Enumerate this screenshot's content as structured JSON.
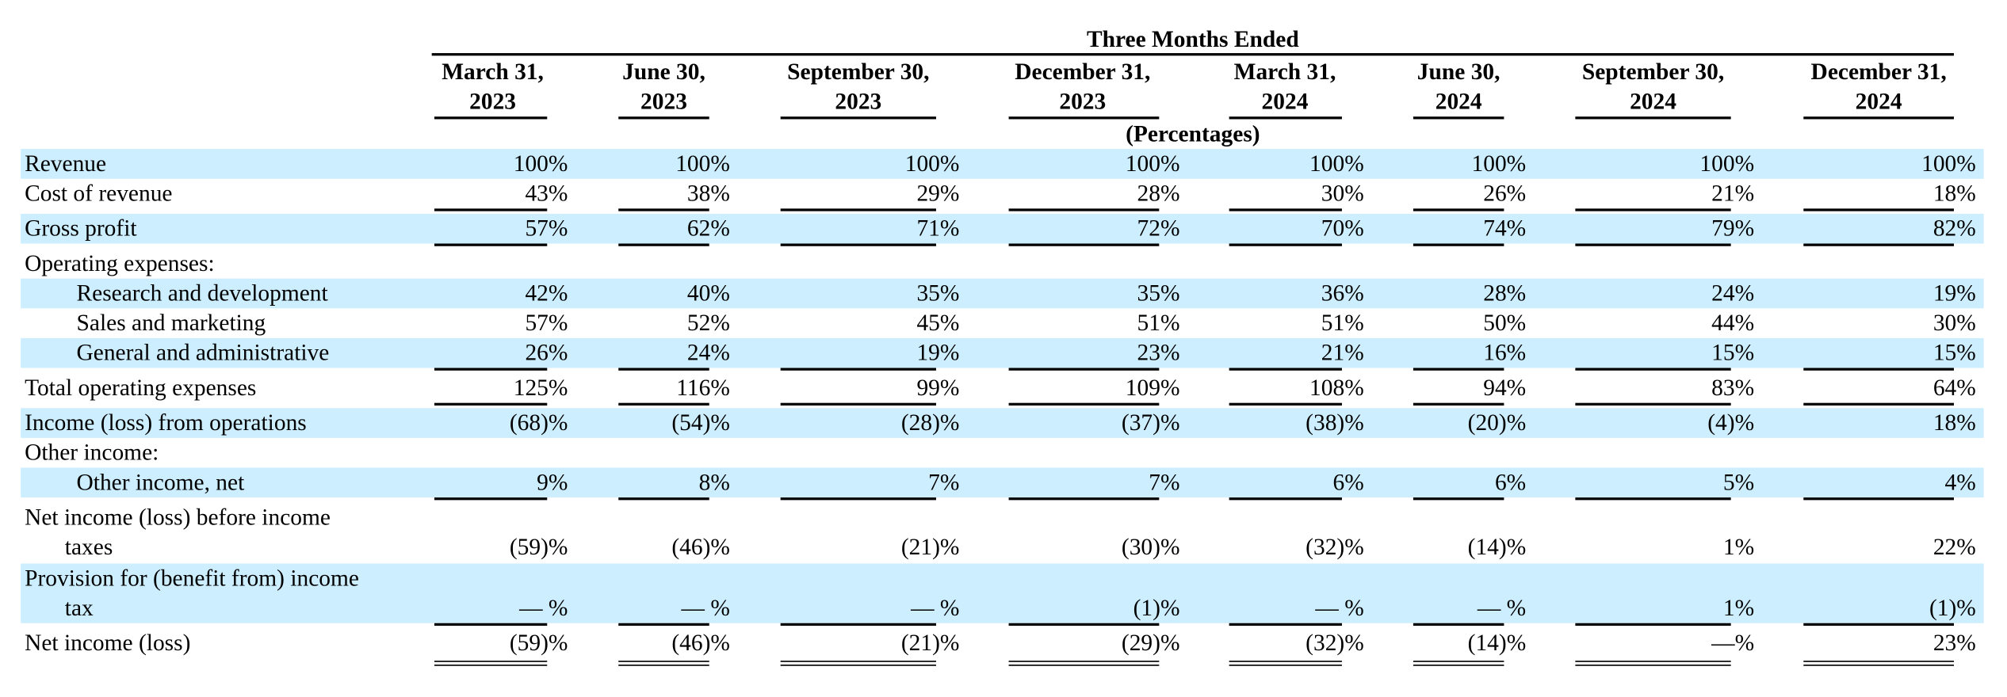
{
  "header": {
    "group_title": "Three Months Ended",
    "unit_label": "(Percentages)",
    "columns": [
      {
        "line1": "March 31,",
        "line2": "2023"
      },
      {
        "line1": "June 30,",
        "line2": "2023"
      },
      {
        "line1": "September 30,",
        "line2": "2023"
      },
      {
        "line1": "December 31,",
        "line2": "2023"
      },
      {
        "line1": "March 31,",
        "line2": "2024"
      },
      {
        "line1": "June 30,",
        "line2": "2024"
      },
      {
        "line1": "September 30,",
        "line2": "2024"
      },
      {
        "line1": "December 31,",
        "line2": "2024"
      }
    ]
  },
  "colors": {
    "band": "#cceeff",
    "text": "#000000"
  },
  "rows": [
    {
      "label": "Revenue",
      "values": [
        "100%",
        "100%",
        "100%",
        "100%",
        "100%",
        "100%",
        "100%",
        "100%"
      ]
    },
    {
      "label": "Cost of revenue",
      "values": [
        "43%",
        "38%",
        "29%",
        "28%",
        "30%",
        "26%",
        "21%",
        "18%"
      ]
    },
    {
      "label": "Gross profit",
      "values": [
        "57%",
        "62%",
        "71%",
        "72%",
        "70%",
        "74%",
        "79%",
        "82%"
      ]
    },
    {
      "label": "Operating expenses:",
      "values": []
    },
    {
      "label": "Research and development",
      "values": [
        "42%",
        "40%",
        "35%",
        "35%",
        "36%",
        "28%",
        "24%",
        "19%"
      ]
    },
    {
      "label": "Sales and marketing",
      "values": [
        "57%",
        "52%",
        "45%",
        "51%",
        "51%",
        "50%",
        "44%",
        "30%"
      ]
    },
    {
      "label": "General and administrative",
      "values": [
        "26%",
        "24%",
        "19%",
        "23%",
        "21%",
        "16%",
        "15%",
        "15%"
      ]
    },
    {
      "label": "Total operating expenses",
      "values": [
        "125%",
        "116%",
        "99%",
        "109%",
        "108%",
        "94%",
        "83%",
        "64%"
      ]
    },
    {
      "label": "Income (loss) from operations",
      "values": [
        "(68)%",
        "(54)%",
        "(28)%",
        "(37)%",
        "(38)%",
        "(20)%",
        "(4)%",
        "18%"
      ]
    },
    {
      "label": "Other income:",
      "values": []
    },
    {
      "label": "Other income, net",
      "values": [
        "9%",
        "8%",
        "7%",
        "7%",
        "6%",
        "6%",
        "5%",
        "4%"
      ]
    },
    {
      "label_line1": "Net income (loss) before income",
      "label_line2": "taxes",
      "values": [
        "(59)%",
        "(46)%",
        "(21)%",
        "(30)%",
        "(32)%",
        "(14)%",
        "1%",
        "22%"
      ]
    },
    {
      "label_line1": "Provision for (benefit from) income",
      "label_line2": "tax",
      "values": [
        "— %",
        "— %",
        "— %",
        "(1)%",
        "— %",
        "— %",
        "1%",
        "(1)%"
      ]
    },
    {
      "label": "Net income (loss)",
      "values": [
        "(59)%",
        "(46)%",
        "(21)%",
        "(29)%",
        "(32)%",
        "(14)%",
        "—%",
        "23%"
      ]
    }
  ]
}
